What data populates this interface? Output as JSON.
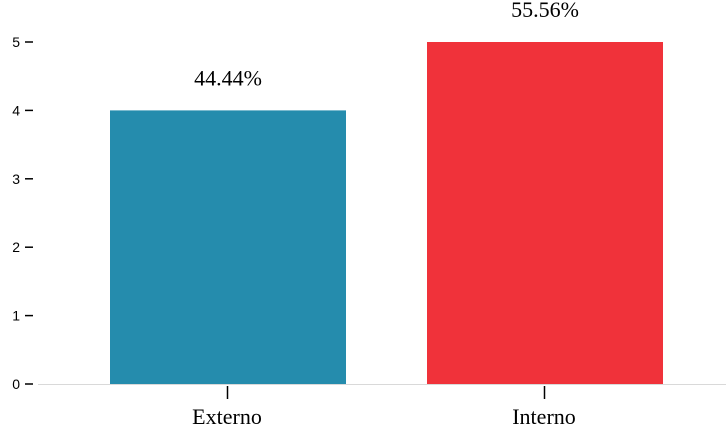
{
  "chart_data": {
    "type": "bar",
    "categories": [
      "Externo",
      "Interno"
    ],
    "values": [
      4,
      5
    ],
    "data_labels": [
      "44.44%",
      "55.56%"
    ],
    "colors": [
      "#258cad",
      "#f0323a"
    ],
    "ylim": [
      0,
      5
    ],
    "yticks": [
      "0",
      "1",
      "2",
      "3",
      "4",
      "5"
    ],
    "grid": false,
    "legend": "none"
  }
}
